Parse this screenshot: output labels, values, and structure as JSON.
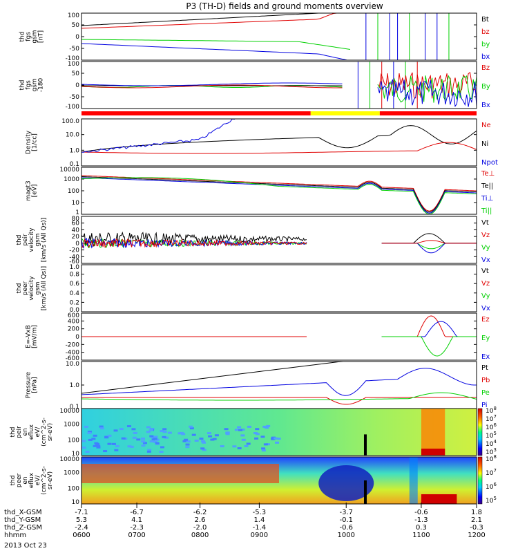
{
  "title": "P3 (TH-D) fields and ground moments overview",
  "date": "2013 Oct 23",
  "colors": {
    "black": "#000000",
    "red": "#e00000",
    "green": "#00d000",
    "blue": "#0000e0",
    "yellow": "#ffff00",
    "mode_red": "#ff0000"
  },
  "chart_data": [
    {
      "type": "line",
      "id": "fgs",
      "ylabel": [
        "thd",
        "fgs",
        "gsm",
        "[nT]"
      ],
      "yticks": [
        "100",
        "50",
        "0",
        "-50",
        "-100"
      ],
      "legend": [
        {
          "name": "Bt",
          "color": "black"
        },
        {
          "name": "bz",
          "color": "red"
        },
        {
          "name": "by",
          "color": "green"
        },
        {
          "name": "bx",
          "color": "blue"
        }
      ]
    },
    {
      "type": "line",
      "id": "fgs_zoom",
      "ylabel": [
        "thd",
        "fgs",
        "gsm",
        "-180"
      ],
      "yticks": [
        "100",
        "50",
        "0",
        "-50",
        "-100"
      ],
      "legend": [
        {
          "name": "Bz",
          "color": "red"
        },
        {
          "name": "By",
          "color": "green"
        },
        {
          "name": "Bx",
          "color": "blue"
        }
      ]
    },
    {
      "type": "line",
      "id": "density",
      "ylabel": [
        "Density",
        "[1/cc]"
      ],
      "yticks": [
        "100.0",
        "10.0",
        "1.0",
        "0.1"
      ],
      "legend": [
        {
          "name": "Ne",
          "color": "red"
        },
        {
          "name": "Ni",
          "color": "black"
        },
        {
          "name": "Npot",
          "color": "blue"
        }
      ]
    },
    {
      "type": "line",
      "id": "temp",
      "ylabel": [
        "magt3",
        "[eV]"
      ],
      "yticks": [
        "10000",
        "1000",
        "100",
        "10",
        "1"
      ],
      "legend": [
        {
          "name": "Te⊥",
          "color": "red"
        },
        {
          "name": "Te||",
          "color": "black"
        },
        {
          "name": "Ti⊥",
          "color": "blue"
        },
        {
          "name": "Ti||",
          "color": "green"
        }
      ]
    },
    {
      "type": "line",
      "id": "ion_vel",
      "ylabel": [
        "thd",
        "peir",
        "velocity",
        "gsm",
        "[km/s (All Qs)]"
      ],
      "yticks": [
        "80",
        "60",
        "40",
        "20",
        "0",
        "-20",
        "-40",
        "-60"
      ],
      "legend": [
        {
          "name": "Vt",
          "color": "black"
        },
        {
          "name": "Vz",
          "color": "red"
        },
        {
          "name": "Vy",
          "color": "green"
        },
        {
          "name": "Vx",
          "color": "blue"
        }
      ]
    },
    {
      "type": "line",
      "id": "elec_vel",
      "ylabel": [
        "thd",
        "peer",
        "velocity",
        "gsm",
        "[km/s (All Qs)]"
      ],
      "yticks": [
        "1.0",
        "0.8",
        "0.6",
        "0.4",
        "0.2",
        "0.0"
      ],
      "legend": [
        {
          "name": "Vt",
          "color": "black"
        },
        {
          "name": "Vz",
          "color": "red"
        },
        {
          "name": "Vy",
          "color": "green"
        },
        {
          "name": "Vx",
          "color": "blue"
        }
      ]
    },
    {
      "type": "line",
      "id": "efield",
      "ylabel": [
        "E=-VxB",
        "[mV/m]"
      ],
      "yticks": [
        "600",
        "400",
        "200",
        "0",
        "-200",
        "-400",
        "-600"
      ],
      "legend": [
        {
          "name": "Ez",
          "color": "red"
        },
        {
          "name": "Ey",
          "color": "green"
        },
        {
          "name": "Ex",
          "color": "blue"
        }
      ]
    },
    {
      "type": "line",
      "id": "pressure",
      "ylabel": [
        "Pressure",
        "[nPa]"
      ],
      "yticks": [
        "10.0",
        "1.0",
        "0.1"
      ],
      "legend": [
        {
          "name": "Pt",
          "color": "black"
        },
        {
          "name": "Pb",
          "color": "red"
        },
        {
          "name": "Pe",
          "color": "green"
        },
        {
          "name": "Pi",
          "color": "blue"
        }
      ]
    },
    {
      "type": "heatmap",
      "id": "ion_spec",
      "ylabel": [
        "thd",
        "peir",
        "en",
        "eflux",
        "eV/",
        "(cm^2-s-",
        "sr-eV)"
      ],
      "yticks": [
        "10000",
        "1000",
        "100",
        "10"
      ],
      "colorbar": [
        "10^8",
        "10^7",
        "10^6",
        "10^5",
        "10^4",
        "10^3"
      ]
    },
    {
      "type": "heatmap",
      "id": "elec_spec",
      "ylabel": [
        "thd",
        "peer",
        "en",
        "eflux",
        "eV/",
        "(cm^2-s-",
        "sr-eV)"
      ],
      "yticks": [
        "10000",
        "1000",
        "100",
        "10"
      ],
      "colorbar": [
        "10^8",
        "10^7",
        "10^6",
        "10^5"
      ]
    }
  ],
  "x_axis": {
    "rows": [
      {
        "label": "thd_X-GSM",
        "values": [
          "-7.1",
          "-6.7",
          "-6.2",
          "-5.3",
          "-3.7",
          "-0.6",
          "1.8"
        ]
      },
      {
        "label": "thd_Y-GSM",
        "values": [
          "5.3",
          "4.1",
          "2.6",
          "1.4",
          "-0.1",
          "-1.3",
          "2.1"
        ]
      },
      {
        "label": "thd_Z-GSM",
        "values": [
          "-2.4",
          "-2.3",
          "-2.0",
          "-1.4",
          "-0.6",
          "0.3",
          "-0.3"
        ]
      },
      {
        "label": "hhmm",
        "values": [
          "0600",
          "0700",
          "0800",
          "0900",
          "1000",
          "1100",
          "1200"
        ]
      }
    ]
  }
}
